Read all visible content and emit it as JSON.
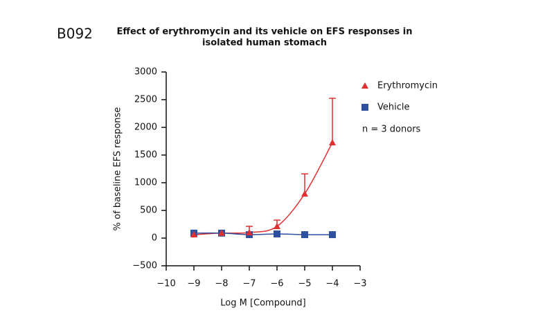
{
  "label": "B092",
  "chart_data": {
    "type": "line",
    "title": [
      "Effect of erythromycin and its vehicle on EFS responses in",
      "isolated human stomach"
    ],
    "xlabel": "Log M [Compound]",
    "ylabel": "% of baseline EFS response",
    "annotation": "n = 3 donors",
    "x": [
      -9,
      -8,
      -7,
      -6,
      -5,
      -4
    ],
    "series": [
      {
        "name": "Erythromycin",
        "color": "#e03030",
        "marker": "triangle",
        "values": [
          62,
          90,
          100,
          212,
          800,
          1725
        ],
        "errors": [
          null,
          null,
          112,
          113,
          360,
          800
        ]
      },
      {
        "name": "Vehicle",
        "color": "#2f4f9f",
        "marker": "square",
        "values": [
          90,
          90,
          62,
          75,
          62,
          62
        ]
      }
    ],
    "xlim": [
      -10,
      -3
    ],
    "xticks": [
      {
        "value": -10,
        "label": "−10"
      },
      {
        "value": -9,
        "label": "−9"
      },
      {
        "value": -8,
        "label": "−8"
      },
      {
        "value": -7,
        "label": "−7"
      },
      {
        "value": -6,
        "label": "−6"
      },
      {
        "value": -5,
        "label": "−5"
      },
      {
        "value": -4,
        "label": "−4"
      },
      {
        "value": -3,
        "label": "−3"
      }
    ],
    "ylim": [
      -500,
      3000
    ],
    "yticks": [
      {
        "value": -500,
        "label": "−500"
      },
      0,
      500,
      1000,
      1500,
      2000,
      2500,
      3000
    ]
  }
}
